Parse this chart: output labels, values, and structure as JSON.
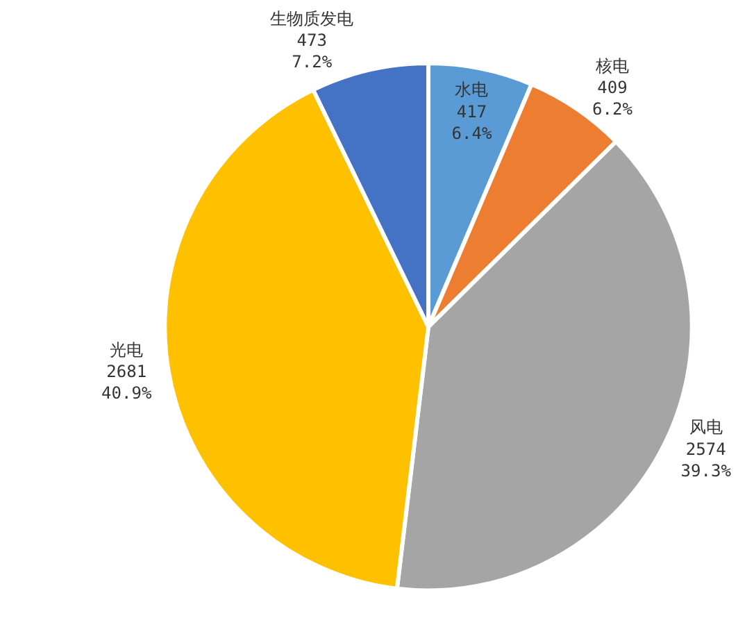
{
  "chart_data": {
    "type": "pie",
    "categories": [
      "水电",
      "核电",
      "风电",
      "光电",
      "生物质发电"
    ],
    "values": [
      6.4,
      6.2,
      39.3,
      40.9,
      7.2
    ],
    "value_labels": [
      "417\n6.4%",
      "409\n6.2%",
      "2574\n39.3%",
      "2681\n40.9%",
      "473\n7.2%"
    ],
    "colors": [
      "#5b9bd5",
      "#ed7d31",
      "#a5a5a5",
      "#ffc000",
      "#4472c4"
    ],
    "legend": false
  }
}
